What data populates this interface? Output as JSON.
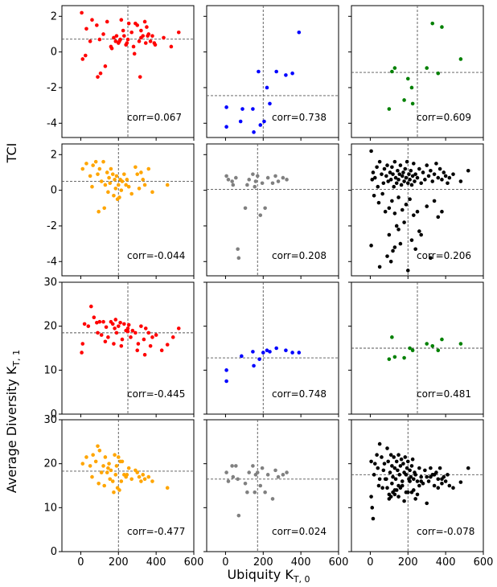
{
  "figure": {
    "ylabel_top": "TCI",
    "ylabel_bottom": "Average Diversity K",
    "ylabel_bottom_sub": "T, 1",
    "xlabel": "Ubiquity K",
    "xlabel_sub": "T, 0",
    "colors": {
      "red": "#ff0000",
      "blue": "#0000ff",
      "green": "#008000",
      "orange": "#ffa500",
      "gray": "#808080",
      "black": "#000000"
    }
  },
  "chart_data": [
    {
      "type": "scatter",
      "color": "#ff0000",
      "xlim": [
        -100,
        600
      ],
      "ylim": [
        -4.8,
        2.6
      ],
      "yticks": [
        -4,
        -2,
        0,
        2
      ],
      "xticks": [
        0,
        200,
        400,
        600
      ],
      "vline": 250,
      "hline": 0.72,
      "annotation": "corr=0.067",
      "x": [
        5,
        30,
        60,
        85,
        100,
        120,
        140,
        160,
        175,
        185,
        190,
        200,
        210,
        215,
        225,
        230,
        240,
        250,
        255,
        270,
        280,
        290,
        300,
        310,
        320,
        330,
        340,
        345,
        350,
        360,
        370,
        380,
        390,
        440,
        480,
        520,
        10,
        50,
        90,
        130,
        165,
        205,
        245,
        285,
        315,
        355,
        395,
        25,
        105,
        320
      ],
      "y": [
        2.2,
        1.3,
        1.8,
        1.5,
        0.7,
        1.0,
        1.7,
        0.3,
        0.8,
        0.6,
        0.9,
        0.5,
        0.7,
        1.8,
        1.2,
        0.9,
        0.4,
        0.7,
        1.6,
        1.1,
        0.3,
        1.6,
        1.5,
        0.6,
        1.2,
        0.9,
        1.7,
        0.5,
        1.4,
        1.0,
        0.6,
        0.9,
        0.5,
        0.8,
        0.3,
        1.1,
        -0.4,
        0.6,
        -1.4,
        -0.8,
        0.2,
        0.6,
        0.5,
        -0.1,
        -1.4,
        0.9,
        0.4,
        -0.2,
        -1.2,
        0.8
      ]
    },
    {
      "type": "scatter",
      "color": "#0000ff",
      "xlim": [
        -100,
        600
      ],
      "ylim": [
        -4.8,
        2.6
      ],
      "yticks": [
        -4,
        -2,
        0,
        2
      ],
      "xticks": [
        0,
        200,
        400,
        600
      ],
      "vline": 200,
      "hline": -2.45,
      "annotation": "corr=0.738",
      "x": [
        5,
        5,
        80,
        90,
        145,
        150,
        175,
        185,
        205,
        220,
        235,
        270,
        320,
        355,
        390
      ],
      "y": [
        -3.1,
        -4.2,
        -3.9,
        -3.2,
        -3.2,
        -4.5,
        -1.1,
        -4.1,
        -3.9,
        -2.0,
        -2.9,
        -1.1,
        -1.3,
        -1.2,
        1.1
      ]
    },
    {
      "type": "scatter",
      "color": "#008000",
      "xlim": [
        -100,
        600
      ],
      "ylim": [
        -4.8,
        2.6
      ],
      "yticks": [
        -4,
        -2,
        0,
        2
      ],
      "xticks": [
        0,
        200,
        400,
        600
      ],
      "vline": 250,
      "hline": -1.15,
      "annotation": "corr=0.609",
      "x": [
        100,
        115,
        130,
        180,
        200,
        220,
        225,
        300,
        330,
        360,
        380,
        480
      ],
      "y": [
        -3.2,
        -1.1,
        -0.9,
        -2.7,
        -1.5,
        -2.0,
        -2.9,
        -0.9,
        1.6,
        -1.2,
        1.4,
        -0.4
      ]
    },
    {
      "type": "scatter",
      "color": "#ffa500",
      "xlim": [
        -100,
        600
      ],
      "ylim": [
        -4.8,
        2.6
      ],
      "yticks": [
        -4,
        -2,
        0,
        2
      ],
      "xticks": [
        0,
        200,
        400,
        600
      ],
      "vline": 200,
      "hline": 0.5,
      "annotation": "corr=-0.044",
      "x": [
        10,
        30,
        50,
        65,
        80,
        90,
        100,
        110,
        120,
        130,
        140,
        150,
        155,
        160,
        170,
        180,
        185,
        190,
        195,
        200,
        210,
        220,
        230,
        240,
        255,
        270,
        290,
        310,
        320,
        330,
        340,
        360,
        380,
        460,
        95,
        125,
        175,
        215,
        60,
        145,
        205,
        245,
        300
      ],
      "y": [
        1.2,
        1.5,
        0.8,
        1.4,
        1.6,
        0.9,
        1.2,
        0.5,
        1.6,
        0.3,
        1.0,
        0.7,
        0.4,
        1.2,
        0.9,
        0.6,
        0.1,
        0.8,
        -0.5,
        0.3,
        0.6,
        0.5,
        0.9,
        0.3,
        0.2,
        -0.2,
        1.3,
        0.1,
        1.0,
        0.6,
        0.3,
        1.2,
        -0.1,
        0.3,
        -1.2,
        -1.0,
        -0.3,
        0.0,
        0.2,
        -0.1,
        -0.4,
        0.6,
        0.9
      ]
    },
    {
      "type": "scatter",
      "color": "#808080",
      "xlim": [
        -100,
        600
      ],
      "ylim": [
        -4.8,
        2.6
      ],
      "yticks": [
        -4,
        -2,
        0,
        2
      ],
      "xticks": [
        0,
        200,
        400,
        600
      ],
      "vline": 170,
      "hline": 0.05,
      "annotation": "corr=0.208",
      "x": [
        5,
        15,
        35,
        40,
        55,
        65,
        70,
        105,
        115,
        125,
        145,
        155,
        160,
        170,
        185,
        195,
        210,
        225,
        250,
        265,
        280,
        305,
        325
      ],
      "y": [
        0.8,
        0.6,
        0.5,
        0.3,
        0.7,
        -3.3,
        -3.8,
        -1.0,
        0.3,
        0.6,
        0.9,
        0.2,
        0.5,
        0.8,
        -1.4,
        0.4,
        -1.0,
        0.7,
        0.4,
        0.8,
        0.5,
        0.7,
        0.6
      ]
    },
    {
      "type": "scatter",
      "color": "#000000",
      "xlim": [
        -100,
        600
      ],
      "ylim": [
        -4.8,
        2.6
      ],
      "yticks": [
        -4,
        -2,
        0,
        2
      ],
      "xticks": [
        0,
        200,
        400,
        600
      ],
      "vline": 200,
      "hline": 0.05,
      "annotation": "corr=0.206",
      "x": [
        5,
        10,
        15,
        25,
        35,
        40,
        50,
        60,
        70,
        75,
        85,
        90,
        95,
        105,
        110,
        115,
        120,
        125,
        130,
        135,
        140,
        145,
        150,
        155,
        160,
        165,
        170,
        175,
        180,
        185,
        190,
        195,
        200,
        205,
        210,
        215,
        220,
        225,
        230,
        235,
        240,
        250,
        260,
        270,
        280,
        290,
        300,
        310,
        320,
        330,
        340,
        350,
        360,
        370,
        380,
        390,
        400,
        410,
        420,
        440,
        480,
        520,
        20,
        45,
        65,
        80,
        100,
        115,
        130,
        150,
        170,
        190,
        210,
        230,
        250,
        100,
        140,
        180,
        220,
        260,
        130,
        160,
        5,
        50,
        90,
        120,
        300,
        340,
        360,
        380,
        110,
        200,
        240,
        150,
        270,
        320
      ],
      "y": [
        2.2,
        0.6,
        1.0,
        0.7,
        1.3,
        0.2,
        1.6,
        0.9,
        0.4,
        1.2,
        0.8,
        1.4,
        0.5,
        1.0,
        0.6,
        1.3,
        0.9,
        0.2,
        1.6,
        0.7,
        0.4,
        1.1,
        0.6,
        0.9,
        1.4,
        0.3,
        0.8,
        1.0,
        0.5,
        1.2,
        0.7,
        1.6,
        0.4,
        0.9,
        0.6,
        1.1,
        0.3,
        0.8,
        1.5,
        0.5,
        0.9,
        0.7,
        1.2,
        0.4,
        1.0,
        0.6,
        1.4,
        0.8,
        1.1,
        0.5,
        0.9,
        1.5,
        0.7,
        1.2,
        0.6,
        1.0,
        0.8,
        0.4,
        0.7,
        0.9,
        0.5,
        1.1,
        -0.3,
        -0.7,
        -0.2,
        -1.2,
        -1.0,
        -0.6,
        -1.3,
        -0.4,
        -1.1,
        -0.8,
        -0.5,
        -1.4,
        -1.2,
        -2.5,
        -2.0,
        -1.8,
        -2.8,
        -2.3,
        -3.2,
        -3.0,
        -3.1,
        -4.3,
        -3.7,
        -3.4,
        -0.9,
        -0.6,
        -1.5,
        -1.2,
        -4.0,
        -4.5,
        -3.3,
        -2.2,
        -2.5,
        -3.8
      ]
    },
    {
      "type": "scatter",
      "color": "#ff0000",
      "xlim": [
        -100,
        600
      ],
      "ylim": [
        0,
        30
      ],
      "yticks": [
        0,
        10,
        20,
        30
      ],
      "xticks": [
        0,
        200,
        400,
        600
      ],
      "vline": 250,
      "hline": 18.5,
      "annotation": "corr=-0.445",
      "x": [
        5,
        20,
        40,
        55,
        70,
        85,
        100,
        110,
        120,
        135,
        145,
        160,
        170,
        180,
        185,
        190,
        200,
        210,
        220,
        230,
        240,
        250,
        255,
        265,
        275,
        290,
        305,
        320,
        335,
        345,
        360,
        370,
        380,
        400,
        430,
        460,
        490,
        520,
        10,
        90,
        130,
        175,
        215,
        250,
        300,
        340
      ],
      "y": [
        14.0,
        20.5,
        20.0,
        24.5,
        22.0,
        20.8,
        21.0,
        18.0,
        21.0,
        19.8,
        17.5,
        21.0,
        20.5,
        19.5,
        21.5,
        18.5,
        20.0,
        20.8,
        17.0,
        20.5,
        19.0,
        18.8,
        20.3,
        17.5,
        19.0,
        18.5,
        16.0,
        20.0,
        17.0,
        19.5,
        18.5,
        15.5,
        17.5,
        18.0,
        14.5,
        15.8,
        17.5,
        19.5,
        16.0,
        18.5,
        16.5,
        16.0,
        15.5,
        19.5,
        14.5,
        13.5
      ]
    },
    {
      "type": "scatter",
      "color": "#0000ff",
      "xlim": [
        -100,
        600
      ],
      "ylim": [
        0,
        30
      ],
      "yticks": [
        0,
        10,
        20,
        30
      ],
      "xticks": [
        0,
        200,
        400,
        600
      ],
      "vline": 200,
      "hline": 12.8,
      "annotation": "corr=0.748",
      "x": [
        5,
        5,
        85,
        145,
        150,
        180,
        200,
        220,
        235,
        270,
        320,
        355,
        390
      ],
      "y": [
        10.0,
        7.5,
        13.2,
        14.2,
        11.0,
        12.5,
        14.0,
        14.5,
        14.2,
        15.0,
        14.5,
        14.0,
        14.0
      ]
    },
    {
      "type": "scatter",
      "color": "#008000",
      "xlim": [
        -100,
        600
      ],
      "ylim": [
        0,
        30
      ],
      "yticks": [
        0,
        10,
        20,
        30
      ],
      "xticks": [
        0,
        200,
        400,
        600
      ],
      "vline": 250,
      "hline": 15.0,
      "annotation": "corr=0.481",
      "x": [
        100,
        115,
        130,
        180,
        210,
        225,
        300,
        330,
        360,
        380,
        480
      ],
      "y": [
        12.5,
        17.5,
        13.0,
        12.8,
        15.0,
        14.5,
        16.0,
        15.5,
        14.5,
        17.0,
        16.0
      ]
    },
    {
      "type": "scatter",
      "color": "#ffa500",
      "xlim": [
        -100,
        600
      ],
      "ylim": [
        0,
        30
      ],
      "yticks": [
        0,
        10,
        20,
        30
      ],
      "xticks": [
        0,
        200,
        400,
        600
      ],
      "vline": 200,
      "hline": 18.3,
      "annotation": "corr=-0.477",
      "x": [
        10,
        30,
        50,
        65,
        80,
        90,
        100,
        110,
        120,
        130,
        140,
        150,
        155,
        160,
        170,
        180,
        185,
        190,
        195,
        200,
        210,
        220,
        230,
        240,
        255,
        270,
        290,
        310,
        320,
        330,
        340,
        360,
        380,
        460,
        95,
        125,
        175,
        215,
        60,
        145,
        205,
        245,
        300
      ],
      "y": [
        20.0,
        21.5,
        19.5,
        22.0,
        20.5,
        24.0,
        23.0,
        18.0,
        19.5,
        21.5,
        18.0,
        20.0,
        16.5,
        18.5,
        16.0,
        22.0,
        17.5,
        19.5,
        14.5,
        21.5,
        20.5,
        20.5,
        17.5,
        17.0,
        19.0,
        16.5,
        18.5,
        17.0,
        16.0,
        17.5,
        16.5,
        17.0,
        16.0,
        14.5,
        15.5,
        15.0,
        13.5,
        16.0,
        17.0,
        19.0,
        14.0,
        17.5,
        18.0
      ]
    },
    {
      "type": "scatter",
      "color": "#808080",
      "xlim": [
        -100,
        600
      ],
      "ylim": [
        0,
        30
      ],
      "yticks": [
        0,
        10,
        20,
        30
      ],
      "xticks": [
        0,
        200,
        400,
        600
      ],
      "vline": 170,
      "hline": 16.5,
      "annotation": "corr=0.024",
      "x": [
        5,
        15,
        35,
        40,
        55,
        65,
        70,
        105,
        115,
        125,
        145,
        155,
        160,
        170,
        185,
        195,
        210,
        225,
        250,
        265,
        280,
        305,
        325
      ],
      "y": [
        18.0,
        16.0,
        19.5,
        17.0,
        19.5,
        16.5,
        8.2,
        15.5,
        13.5,
        18.0,
        19.5,
        13.5,
        17.5,
        18.0,
        15.0,
        19.0,
        13.5,
        17.5,
        12.0,
        18.5,
        17.0,
        17.5,
        18.0
      ]
    },
    {
      "type": "scatter",
      "color": "#000000",
      "xlim": [
        -100,
        600
      ],
      "ylim": [
        0,
        30
      ],
      "yticks": [
        0,
        10,
        20,
        30
      ],
      "xticks": [
        0,
        200,
        400,
        600
      ],
      "vline": 200,
      "hline": 17.5,
      "annotation": "corr=-0.078",
      "x": [
        5,
        10,
        15,
        25,
        35,
        40,
        50,
        60,
        70,
        75,
        85,
        90,
        95,
        105,
        110,
        115,
        120,
        125,
        130,
        135,
        140,
        145,
        150,
        155,
        160,
        165,
        170,
        175,
        180,
        185,
        190,
        195,
        200,
        205,
        210,
        215,
        220,
        225,
        230,
        235,
        240,
        250,
        260,
        270,
        280,
        290,
        300,
        310,
        320,
        330,
        340,
        350,
        360,
        370,
        380,
        390,
        400,
        410,
        420,
        440,
        480,
        520,
        20,
        45,
        65,
        80,
        100,
        115,
        130,
        150,
        170,
        190,
        210,
        230,
        250,
        100,
        140,
        180,
        220,
        260,
        130,
        160,
        5,
        50,
        90,
        120,
        300,
        340,
        360,
        380,
        110,
        200,
        240,
        150,
        270,
        320
      ],
      "y": [
        20.5,
        10.0,
        7.5,
        20.0,
        22.0,
        19.0,
        24.5,
        21.5,
        18.5,
        20.0,
        16.5,
        23.5,
        20.5,
        18.0,
        22.0,
        19.5,
        17.0,
        21.5,
        19.0,
        16.5,
        20.5,
        18.5,
        22.0,
        17.5,
        19.5,
        21.0,
        16.0,
        20.0,
        18.0,
        21.5,
        17.5,
        19.0,
        20.5,
        16.5,
        18.5,
        17.0,
        19.5,
        21.0,
        16.5,
        18.0,
        17.5,
        16.0,
        19.0,
        17.0,
        15.5,
        18.5,
        17.0,
        16.0,
        19.0,
        17.5,
        15.0,
        18.0,
        16.5,
        19.0,
        15.5,
        17.0,
        16.0,
        17.5,
        15.0,
        14.5,
        15.8,
        19.0,
        17.5,
        15.0,
        14.5,
        16.5,
        13.0,
        15.5,
        14.0,
        12.5,
        15.0,
        13.5,
        16.0,
        14.0,
        13.0,
        12.0,
        14.0,
        11.5,
        13.5,
        15.0,
        13.0,
        14.5,
        12.5,
        16.5,
        14.5,
        13.5,
        11.0,
        17.5,
        14.5,
        16.5,
        12.5,
        13.5,
        12.0,
        15.0,
        16.0,
        17.0
      ]
    }
  ]
}
